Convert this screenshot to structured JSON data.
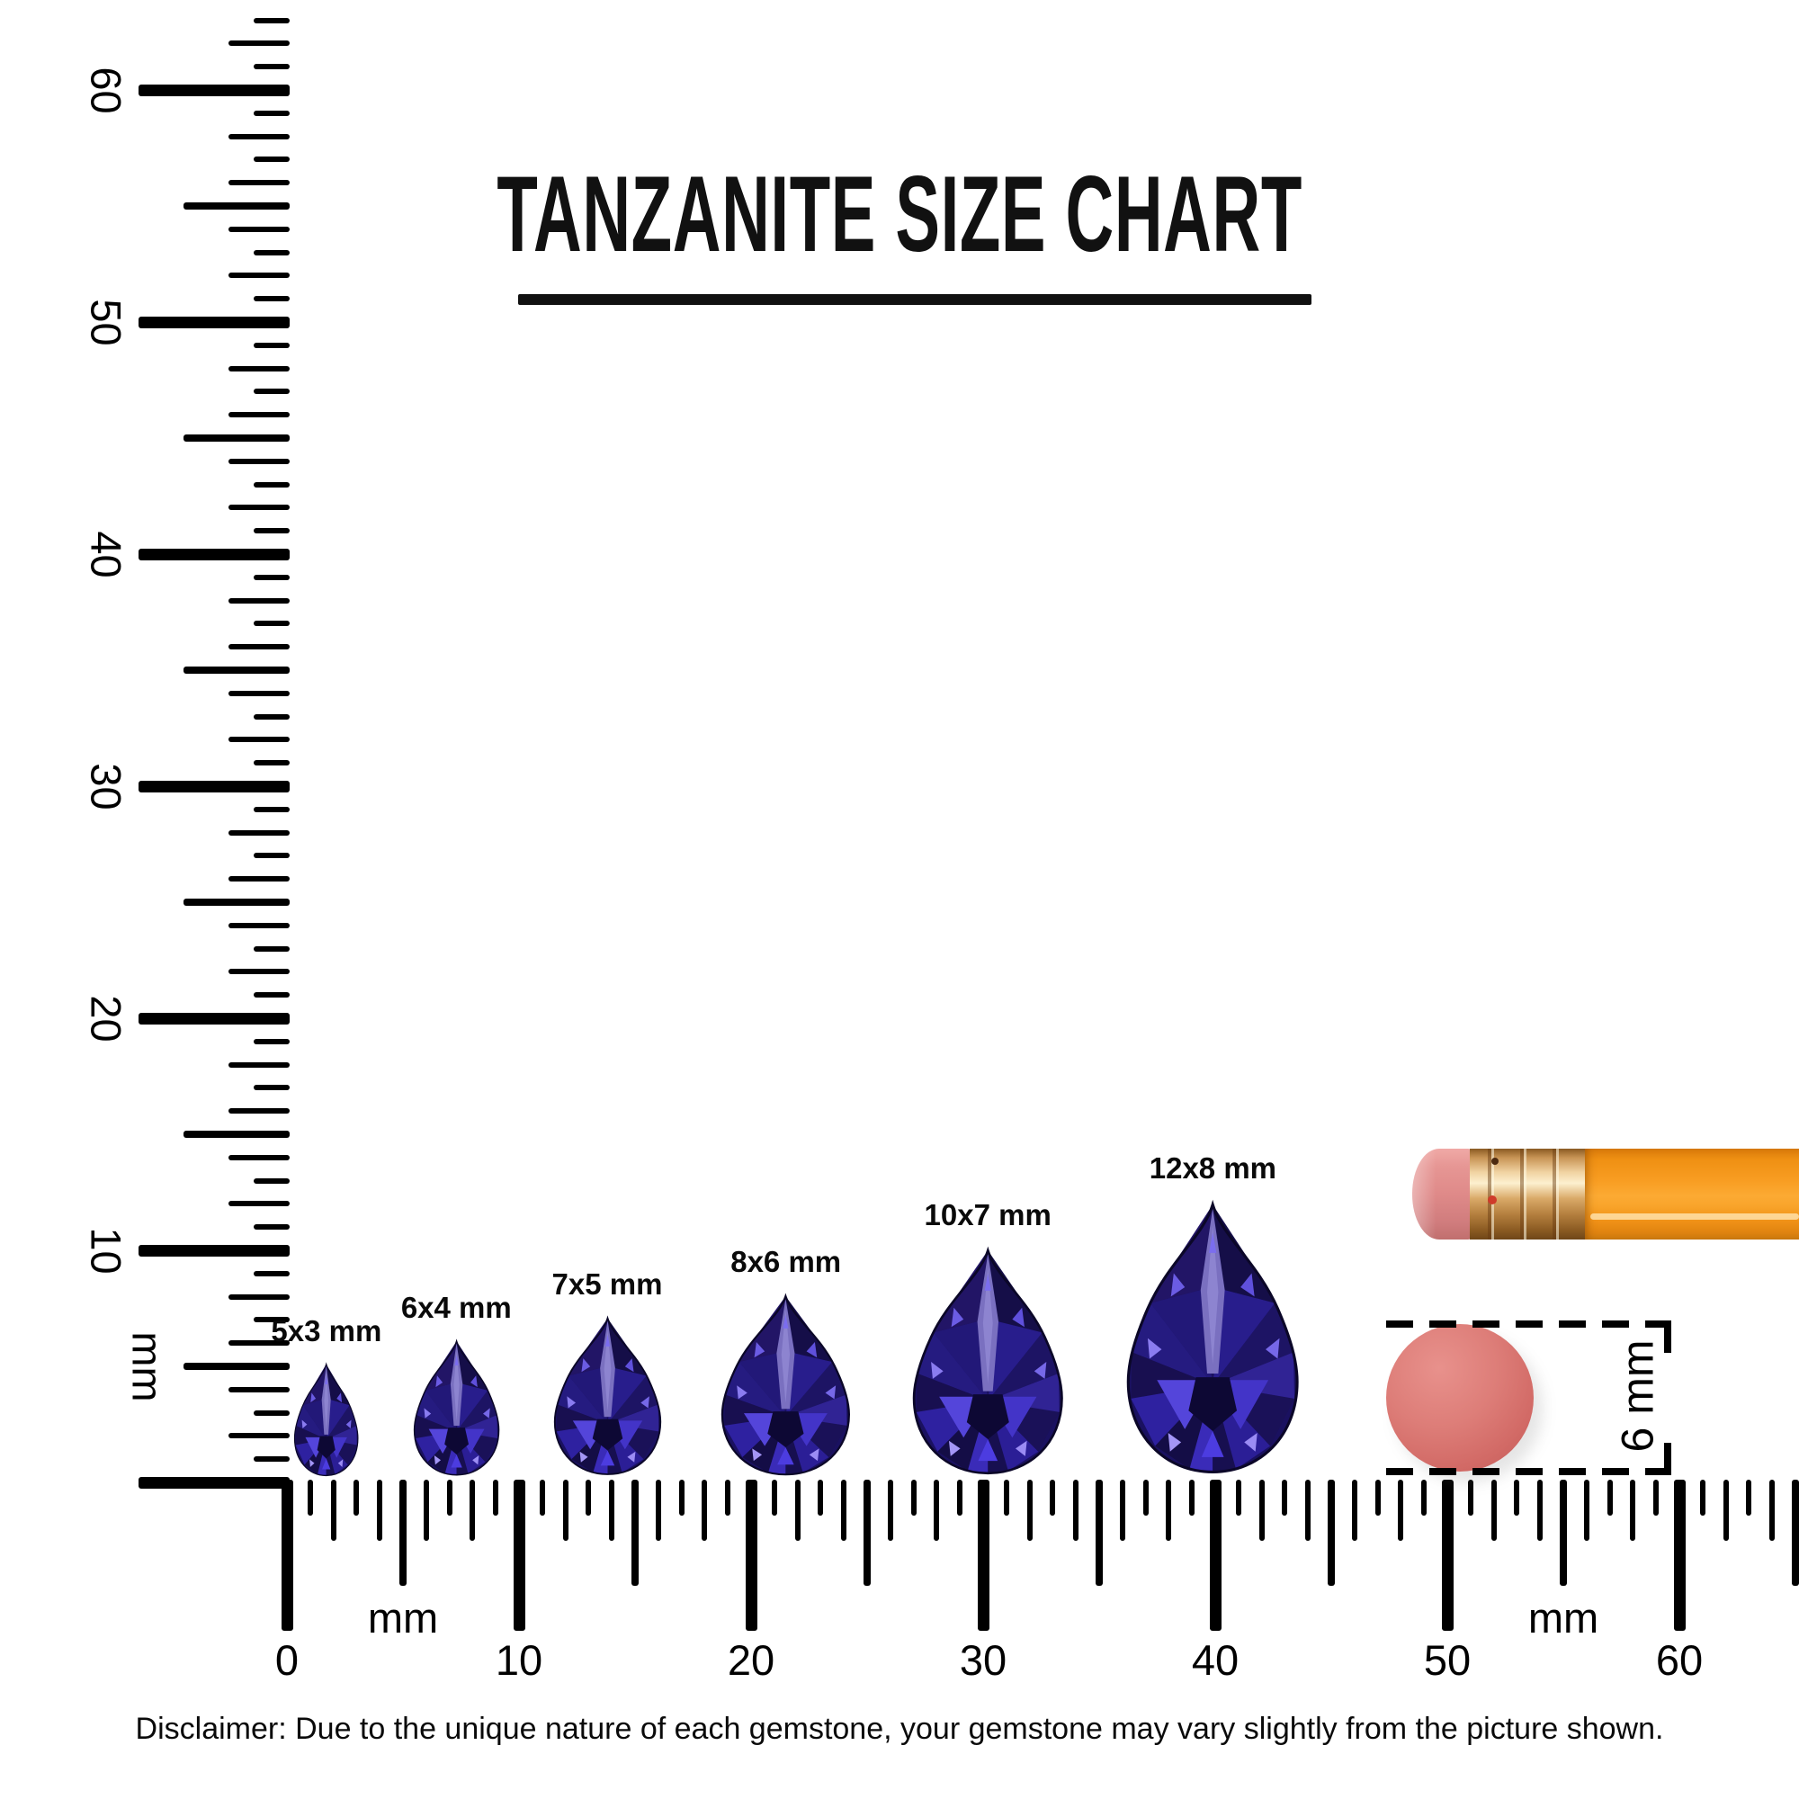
{
  "title": "TANZANITE SIZE CHART",
  "gems": [
    {
      "label": "5x3 mm",
      "width_mm": 3,
      "height_mm": 5,
      "center_mm": 1.7
    },
    {
      "label": "6x4 mm",
      "width_mm": 4,
      "height_mm": 6,
      "center_mm": 7.3
    },
    {
      "label": "7x5 mm",
      "width_mm": 5,
      "height_mm": 7,
      "center_mm": 13.8
    },
    {
      "label": "8x6 mm",
      "width_mm": 6,
      "height_mm": 8,
      "center_mm": 21.5
    },
    {
      "label": "10x7 mm",
      "width_mm": 7,
      "height_mm": 10,
      "center_mm": 30.2
    },
    {
      "label": "12x8 mm",
      "width_mm": 8,
      "height_mm": 12,
      "center_mm": 39.9
    }
  ],
  "rulers": {
    "unit": "mm",
    "horizontal": {
      "labels": [
        "0",
        "10",
        "20",
        "30",
        "40",
        "50",
        "60"
      ],
      "max_tick_mm": 65
    },
    "vertical": {
      "labels": [
        "10",
        "20",
        "30",
        "40",
        "50",
        "60"
      ],
      "max_tick_mm": 63
    }
  },
  "reference_objects": {
    "pencil": {
      "parts": [
        "eraser tip",
        "ferrule",
        "body"
      ]
    },
    "round_eraser": {
      "measure_label": "6 mm",
      "diameter_mm": 6
    }
  },
  "disclaimer": "Disclaimer: Due to the unique nature of each gemstone, your gemstone may vary slightly from the picture shown.",
  "colors": {
    "ink": "#000000",
    "gem_base": "#1a1160",
    "gem_dark": "#140d46",
    "gem_bright": "#4c3ce0",
    "gem_keel": "#8174e8",
    "gem_sparkle": "#a496f6",
    "pencil_body": "#f89d22",
    "pencil_ferrule": "#d9a968",
    "pencil_eraser": "#df8a89",
    "round_eraser": "#d97570"
  }
}
